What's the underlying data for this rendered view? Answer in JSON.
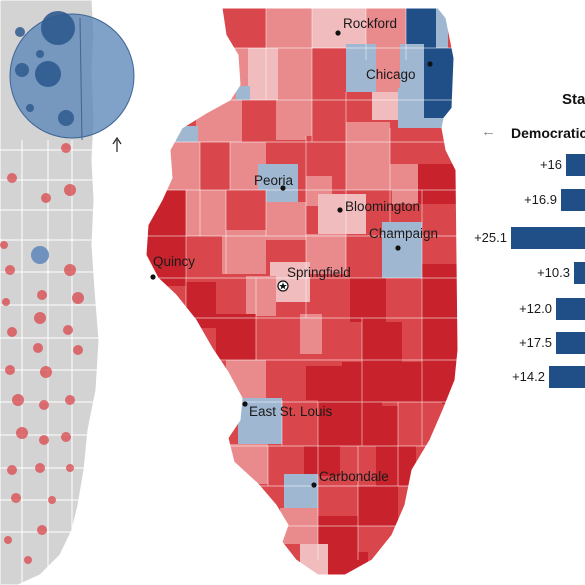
{
  "colors": {
    "gop_dark": "#c8232c",
    "gop_mid": "#d9474c",
    "gop_light": "#e98a8d",
    "gop_pale": "#f1bcbd",
    "dem_light": "#9fb7d1",
    "dem_dark": "#1f4f86",
    "inset_gray": "#d3d3d3",
    "inset_circle": "#5c86b8"
  },
  "map": {
    "cities": [
      {
        "name": "Rockford",
        "marker": "dot"
      },
      {
        "name": "Chicago",
        "marker": "dot"
      },
      {
        "name": "Peoria",
        "marker": "dot"
      },
      {
        "name": "Bloomington",
        "marker": "dot"
      },
      {
        "name": "Champaign",
        "marker": "dot"
      },
      {
        "name": "Quincy",
        "marker": "dot"
      },
      {
        "name": "Springfield",
        "marker": "star"
      },
      {
        "name": "East St. Louis",
        "marker": "dot"
      },
      {
        "name": "Carbondale",
        "marker": "dot"
      }
    ]
  },
  "sidebar": {
    "title_fragment": "Sta",
    "arrow_glyph": "←",
    "legend_label": "Democratic",
    "shift_bars": [
      {
        "label": "+16",
        "value": 16
      },
      {
        "label": "+16.9",
        "value": 16.9
      },
      {
        "label": "+25.1",
        "value": 25.1
      },
      {
        "label": "+10.3",
        "value": 10.3
      },
      {
        "label": "+12.0",
        "value": 12.0
      },
      {
        "label": "+17.5",
        "value": 17.5
      },
      {
        "label": "+14.2",
        "value": 14.2
      }
    ]
  }
}
